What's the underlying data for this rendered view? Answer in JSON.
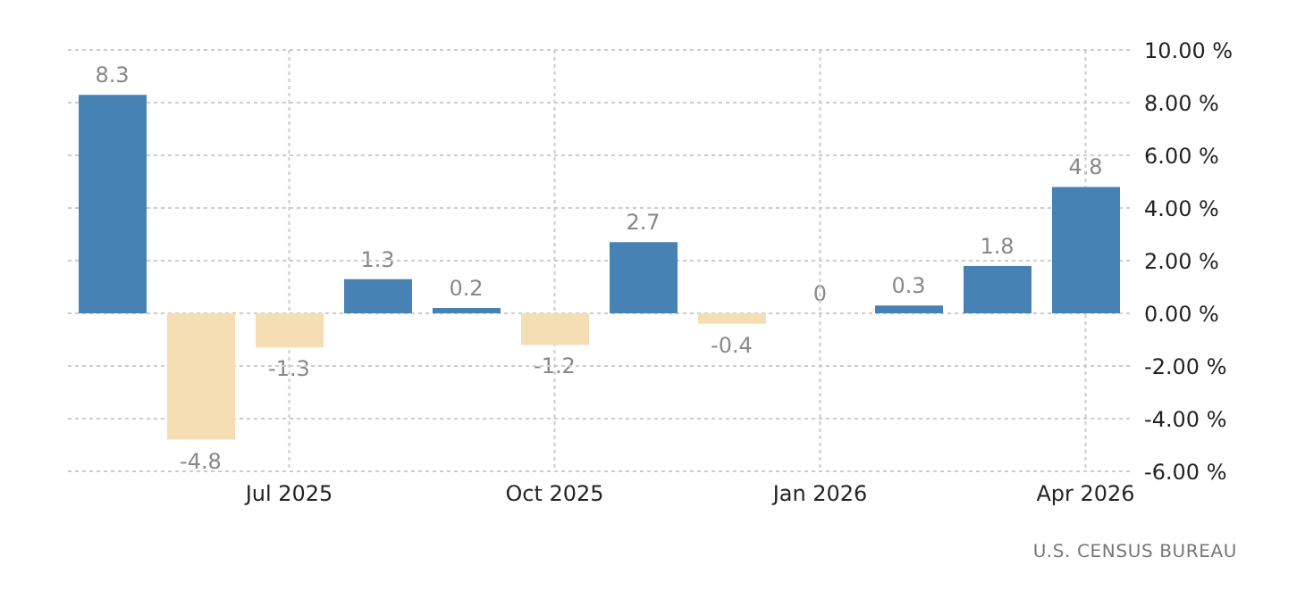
{
  "chart_data": {
    "type": "bar",
    "categories": [
      null,
      null,
      "Jul 2025",
      null,
      null,
      "Oct 2025",
      null,
      null,
      "Jan 2026",
      null,
      null,
      "Apr 2026"
    ],
    "values": [
      8.3,
      -4.8,
      -1.3,
      1.3,
      0.2,
      -1.2,
      2.7,
      -0.4,
      0,
      0.3,
      1.8,
      4.8
    ],
    "colors": [
      "#4682b4",
      "#f5deb3",
      "#f5deb3",
      "#4682b4",
      "#4682b4",
      "#f5deb3",
      "#4682b4",
      "#f5deb3",
      "#4682b4",
      "#4682b4",
      "#4682b4",
      "#4682b4"
    ],
    "ylim": [
      -6,
      10
    ],
    "yticks": [
      {
        "value": -6,
        "label": "-6.00 %"
      },
      {
        "value": -4,
        "label": "-4.00 %"
      },
      {
        "value": -2,
        "label": "-2.00 %"
      },
      {
        "value": 0,
        "label": "0.00 %"
      },
      {
        "value": 2,
        "label": "2.00 %"
      },
      {
        "value": 4,
        "label": "4.00 %"
      },
      {
        "value": 6,
        "label": "6.00 %"
      },
      {
        "value": 8,
        "label": "8.00 %"
      },
      {
        "value": 10,
        "label": "10.00 %"
      }
    ],
    "grid": true,
    "legend": false,
    "data_labels": true,
    "annotations": [
      "U.S. CENSUS BUREAU"
    ]
  }
}
